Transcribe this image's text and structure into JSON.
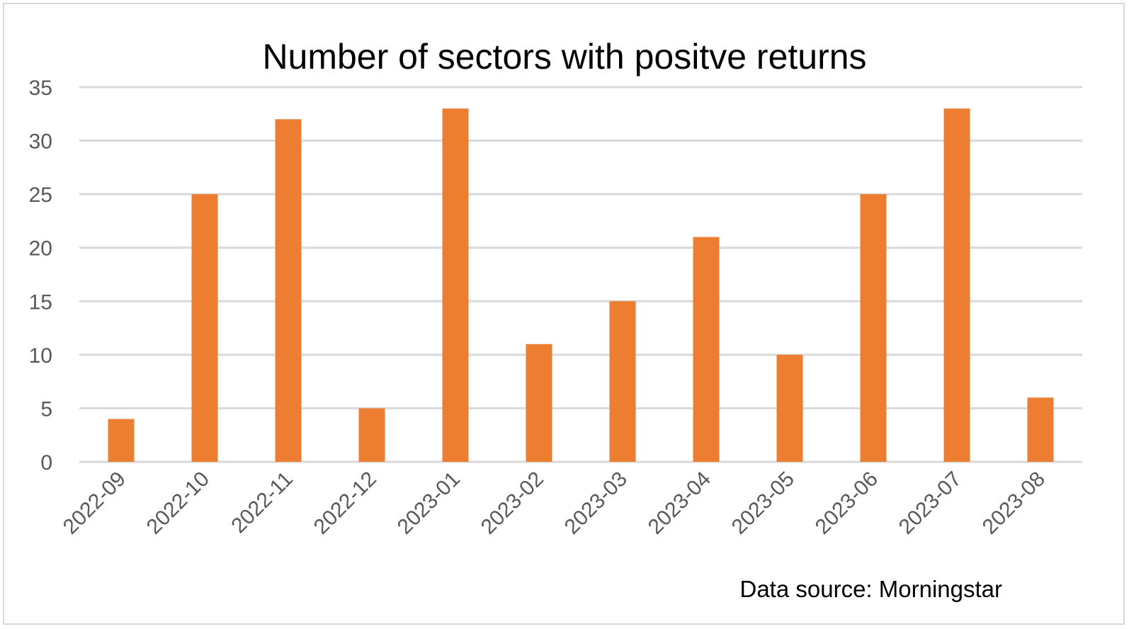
{
  "chart_data": {
    "type": "bar",
    "title": "Number of sectors with positve returns",
    "categories": [
      "2022-09",
      "2022-10",
      "2022-11",
      "2022-12",
      "2023-01",
      "2023-02",
      "2023-03",
      "2023-04",
      "2023-05",
      "2023-06",
      "2023-07",
      "2023-08"
    ],
    "values": [
      4,
      25,
      32,
      5,
      33,
      11,
      15,
      21,
      10,
      25,
      33,
      6
    ],
    "ylim": [
      0,
      35
    ],
    "yticks": [
      0,
      5,
      10,
      15,
      20,
      25,
      30,
      35
    ],
    "grid": true,
    "legend": "none",
    "bar_color": "#ed7d31",
    "gridline_color": "#d9d9d9",
    "annotation": "Data source: Morningstar"
  }
}
